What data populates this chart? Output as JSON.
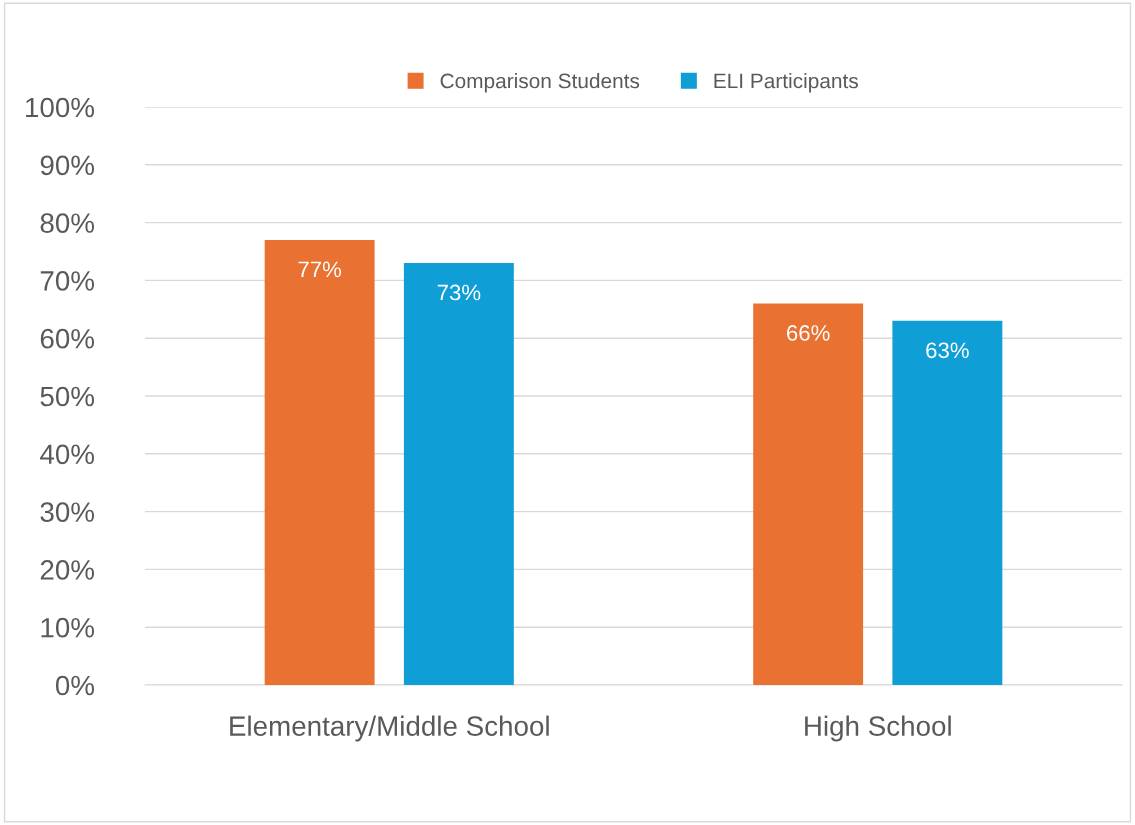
{
  "chart_data": {
    "type": "bar",
    "categories": [
      "Elementary/Middle School",
      "High School"
    ],
    "series": [
      {
        "name": "Comparison Students",
        "color": "#e97132",
        "values": [
          77,
          66
        ],
        "value_labels": [
          "77%",
          "66%"
        ]
      },
      {
        "name": "ELI Participants",
        "color": "#0f9ed5",
        "values": [
          73,
          63
        ],
        "value_labels": [
          "73%",
          "63%"
        ]
      }
    ],
    "ylim": [
      0,
      100
    ],
    "yticks": [
      {
        "value": 0,
        "label": "0%"
      },
      {
        "value": 10,
        "label": "10%"
      },
      {
        "value": 20,
        "label": "20%"
      },
      {
        "value": 30,
        "label": "30%"
      },
      {
        "value": 40,
        "label": "40%"
      },
      {
        "value": 50,
        "label": "50%"
      },
      {
        "value": 60,
        "label": "60%"
      },
      {
        "value": 70,
        "label": "70%"
      },
      {
        "value": 80,
        "label": "80%"
      },
      {
        "value": 90,
        "label": "90%"
      },
      {
        "value": 100,
        "label": "100%"
      }
    ],
    "grid": "y",
    "legend": "top"
  }
}
